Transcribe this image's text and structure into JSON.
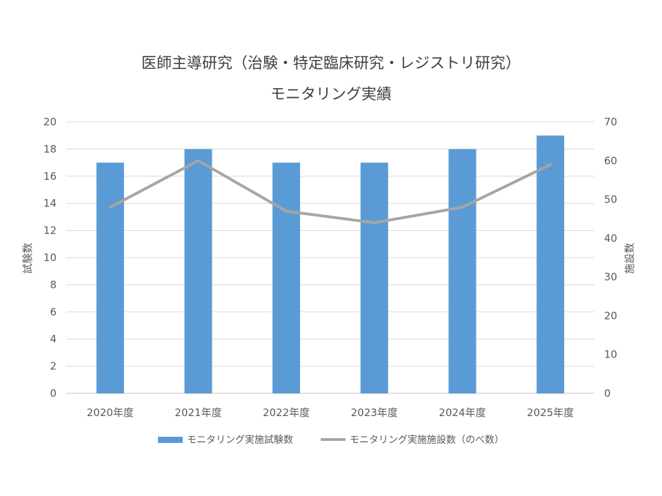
{
  "chart_data": {
    "type": "bar",
    "title": "医師主導研究（治験・特定臨床研究・レジストリ研究）",
    "subtitle": "モニタリング実績",
    "categories": [
      "2020年度",
      "2021年度",
      "2022年度",
      "2023年度",
      "2024年度",
      "2025年度"
    ],
    "series": [
      {
        "name": "モニタリング実施試験数",
        "type": "bar",
        "axis": "left",
        "color": "#5b9bd5",
        "values": [
          17,
          18,
          17,
          17,
          18,
          19
        ]
      },
      {
        "name": "モニタリング実施施設数（のべ数）",
        "type": "line",
        "axis": "right",
        "color": "#a5a5a5",
        "values": [
          48,
          60,
          47,
          44,
          48,
          59
        ]
      }
    ],
    "ylabel": "試験数",
    "ylim": [
      0,
      20
    ],
    "yticks": [
      0,
      2,
      4,
      6,
      8,
      10,
      12,
      14,
      16,
      18,
      20
    ],
    "y2label": "施設数",
    "y2lim": [
      0,
      70
    ],
    "y2ticks": [
      0,
      10,
      20,
      30,
      40,
      50,
      60,
      70
    ],
    "grid": true,
    "legend_position": "bottom"
  }
}
